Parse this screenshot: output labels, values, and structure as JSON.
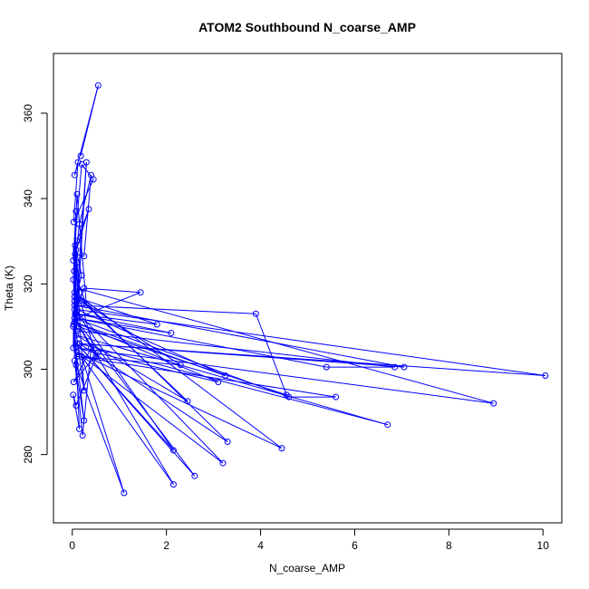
{
  "chart_data": {
    "type": "line",
    "title": "ATOM2 Southbound N_coarse_AMP",
    "xlabel": "N_coarse_AMP",
    "ylabel": "Theta (K)",
    "xlim": [
      -0.4,
      10.4
    ],
    "ylim": [
      264,
      374
    ],
    "xticks": [
      "0",
      "2",
      "4",
      "6",
      "8",
      "10"
    ],
    "yticks": [
      "280",
      "300",
      "320",
      "340",
      "360"
    ],
    "grid": false,
    "legend": "none",
    "series_color": "#0000ff",
    "series": [
      {
        "x": [
          0.18,
          0.55,
          0.05,
          0.12,
          0.03,
          0.45,
          0.2,
          0.02,
          0.08,
          0.05,
          0.1,
          0.35,
          0.06,
          0.25,
          0.4,
          0.15,
          0.04,
          0.3,
          0.1,
          0.02,
          0.05,
          0.2,
          0.08,
          0.15,
          0.03,
          0.1,
          0.06,
          0.25,
          1.45,
          0.1,
          0.05,
          3.9,
          4.55,
          0.12,
          0.05,
          1.8,
          0.08,
          2.1,
          0.05,
          5.4,
          6.85,
          0.1,
          0.05,
          7.05,
          0.15,
          10.05,
          0.1,
          3.25,
          0.05,
          3.1,
          0.08,
          8.95,
          0.1,
          0.5,
          0.05,
          4.6,
          5.6,
          0.1,
          2.3,
          0.05,
          0.2,
          2.45,
          0.08,
          6.7,
          0.15,
          3.3,
          0.05,
          4.45,
          0.1,
          3.2,
          0.05,
          2.15,
          0.1,
          2.6,
          0.05,
          2.15,
          0.2,
          1.1,
          0.08,
          0.02,
          0.25,
          0.05,
          0.22,
          0.4,
          0.03,
          0.55,
          0.08,
          0.02,
          0.15,
          0.05,
          0.25,
          0.06,
          0.02,
          0.3,
          0.1
        ],
        "y": [
          350,
          366.5,
          345.5,
          348.5,
          334.5,
          344.5,
          348,
          325.5,
          337,
          311,
          330,
          337.5,
          327,
          326.5,
          345.5,
          334,
          323,
          315,
          341,
          321,
          316,
          322,
          328,
          318,
          310.5,
          325,
          313,
          319,
          318,
          312,
          315,
          313,
          294,
          310,
          317,
          310.5,
          313,
          308.5,
          312,
          300.5,
          300.5,
          309,
          315,
          300.5,
          306,
          298.5,
          314,
          298.5,
          311,
          297,
          305,
          292,
          319,
          303,
          312,
          293.5,
          293.5,
          303,
          301,
          317,
          316,
          292.5,
          308,
          287,
          306,
          283,
          318,
          281.5,
          304,
          278,
          314,
          281,
          306,
          275,
          312,
          273,
          303,
          271,
          301,
          310,
          288,
          302,
          284.5,
          305,
          297,
          304,
          291.5,
          294,
          286,
          311,
          295,
          329,
          305,
          348.5,
          312
        ]
      }
    ]
  }
}
